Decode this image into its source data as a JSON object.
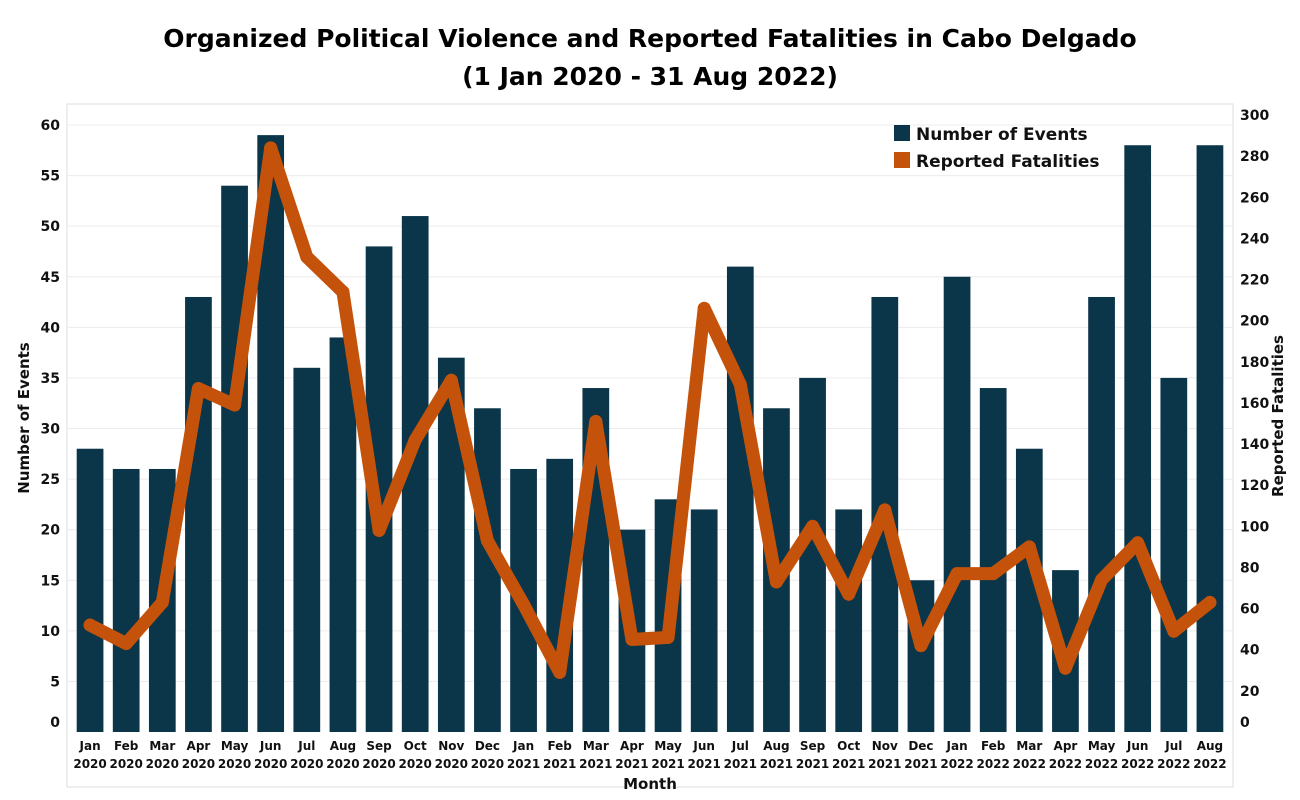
{
  "chart_data": {
    "type": "bar",
    "title": "Organized Political Violence and Reported Fatalities in Cabo Delgado",
    "subtitle": "(1 Jan 2020 - 31 Aug 2022)",
    "xlabel": "Month",
    "ylabel": "Number of Events",
    "y2label": "Reported Fatalities",
    "ylim": [
      0,
      60
    ],
    "y2lim": [
      0,
      300
    ],
    "yticks": [
      0,
      5,
      10,
      15,
      20,
      25,
      30,
      35,
      40,
      45,
      50,
      55,
      60
    ],
    "y2ticks": [
      0,
      20,
      40,
      60,
      80,
      100,
      120,
      140,
      160,
      180,
      200,
      220,
      240,
      260,
      280,
      300
    ],
    "legend_position": "top-right",
    "categories": [
      [
        "Jan",
        "2020"
      ],
      [
        "Feb",
        "2020"
      ],
      [
        "Mar",
        "2020"
      ],
      [
        "Apr",
        "2020"
      ],
      [
        "May",
        "2020"
      ],
      [
        "Jun",
        "2020"
      ],
      [
        "Jul",
        "2020"
      ],
      [
        "Aug",
        "2020"
      ],
      [
        "Sep",
        "2020"
      ],
      [
        "Oct",
        "2020"
      ],
      [
        "Nov",
        "2020"
      ],
      [
        "Dec",
        "2020"
      ],
      [
        "Jan",
        "2021"
      ],
      [
        "Feb",
        "2021"
      ],
      [
        "Mar",
        "2021"
      ],
      [
        "Apr",
        "2021"
      ],
      [
        "May",
        "2021"
      ],
      [
        "Jun",
        "2021"
      ],
      [
        "Jul",
        "2021"
      ],
      [
        "Aug",
        "2021"
      ],
      [
        "Sep",
        "2021"
      ],
      [
        "Oct",
        "2021"
      ],
      [
        "Nov",
        "2021"
      ],
      [
        "Dec",
        "2021"
      ],
      [
        "Jan",
        "2022"
      ],
      [
        "Feb",
        "2022"
      ],
      [
        "Mar",
        "2022"
      ],
      [
        "Apr",
        "2022"
      ],
      [
        "May",
        "2022"
      ],
      [
        "Jun",
        "2022"
      ],
      [
        "Jul",
        "2022"
      ],
      [
        "Aug",
        "2022"
      ]
    ],
    "series": [
      {
        "name": "Number of Events",
        "type": "bar",
        "axis": "left",
        "color": "#0b3548",
        "values": [
          28,
          26,
          26,
          43,
          54,
          59,
          36,
          39,
          48,
          51,
          37,
          32,
          26,
          27,
          34,
          20,
          23,
          22,
          46,
          32,
          35,
          22,
          43,
          15,
          45,
          34,
          28,
          16,
          43,
          58,
          35,
          58
        ]
      },
      {
        "name": "Reported Fatalities",
        "type": "line",
        "axis": "right",
        "color": "#c4520a",
        "values": [
          52,
          43,
          63,
          167,
          159,
          284,
          231,
          214,
          98,
          142,
          171,
          93,
          62,
          29,
          151,
          45,
          46,
          206,
          169,
          73,
          100,
          67,
          108,
          42,
          77,
          77,
          90,
          31,
          74,
          92,
          49,
          63
        ]
      }
    ]
  }
}
